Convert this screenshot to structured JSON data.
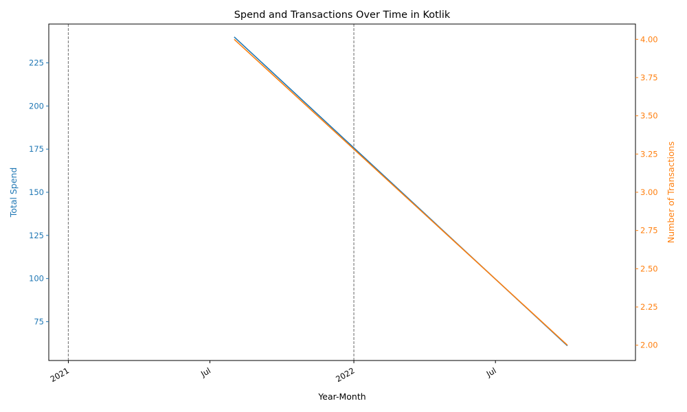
{
  "chart_data": {
    "type": "line",
    "title": "Spend and Transactions Over Time in Kotlik",
    "xlabel": "Year-Month",
    "y_left_label": "Total Spend",
    "y_right_label": "Number of Transactions",
    "x_tick_labels": [
      "2021",
      "Jul",
      "2022",
      "Jul"
    ],
    "x_tick_dates": [
      "2021-01-01",
      "2021-07-01",
      "2022-01-01",
      "2022-07-01"
    ],
    "xlim": [
      "2020-12-07",
      "2022-12-27"
    ],
    "y_left_ticks": [
      "75",
      "100",
      "125",
      "150",
      "175",
      "200",
      "225"
    ],
    "y_left_lim": [
      52.5,
      247.5
    ],
    "y_right_ticks": [
      "2.00",
      "2.25",
      "2.50",
      "2.75",
      "3.00",
      "3.25",
      "3.50",
      "3.75",
      "4.00"
    ],
    "y_right_lim": [
      1.9,
      4.1
    ],
    "vertical_lines": [
      "2021-01-01",
      "2022-01-01"
    ],
    "series": [
      {
        "axis": "left",
        "color": "#1f77b4",
        "x": [
          "2021-08-01",
          "2022-10-01"
        ],
        "y": [
          240,
          61
        ]
      },
      {
        "axis": "right",
        "color": "#ff7f0e",
        "x": [
          "2021-08-01",
          "2022-10-01"
        ],
        "y": [
          4,
          2
        ]
      }
    ],
    "colors": {
      "left_axis": "#1f77b4",
      "right_axis": "#ff7f0e",
      "vline": "#808080"
    },
    "grid": false
  }
}
